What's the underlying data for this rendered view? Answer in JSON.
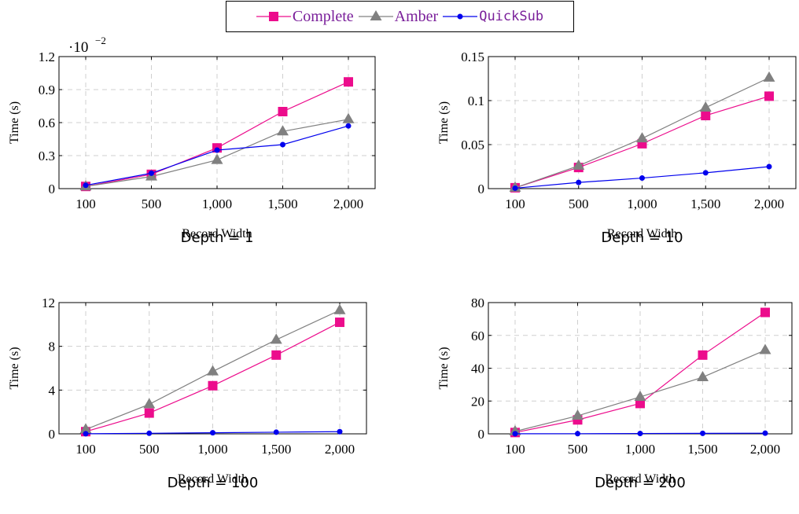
{
  "legend": {
    "entries": [
      {
        "name": "Complete",
        "color": "#ec0c8c",
        "marker": "square"
      },
      {
        "name": "Amber",
        "color": "#808080",
        "marker": "triangle"
      },
      {
        "name": "QuickSub",
        "color": "#0000ee",
        "marker": "circle"
      }
    ]
  },
  "chart_data": [
    {
      "type": "line",
      "caption": "Depth = 1",
      "xlabel": "Record Width",
      "ylabel": "Time (s)",
      "scale_note": "·10",
      "scale_exp": "−2",
      "categories": [
        "100",
        "500",
        "1,000",
        "1,500",
        "2,000"
      ],
      "yticks": [
        "0",
        "0.3",
        "0.6",
        "0.9",
        "1.2"
      ],
      "ylim": [
        0,
        1.2
      ],
      "grid": true,
      "series": [
        {
          "name": "Complete",
          "values": [
            0.02,
            0.13,
            0.37,
            0.7,
            0.97
          ]
        },
        {
          "name": "Amber",
          "values": [
            0.02,
            0.11,
            0.26,
            0.52,
            0.63
          ]
        },
        {
          "name": "QuickSub",
          "values": [
            0.03,
            0.14,
            0.35,
            0.4,
            0.57
          ]
        }
      ]
    },
    {
      "type": "line",
      "caption": "Depth = 10",
      "xlabel": "Record Width",
      "ylabel": "Time (s)",
      "categories": [
        "100",
        "500",
        "1,000",
        "1,500",
        "2,000"
      ],
      "yticks": [
        "0",
        "0.05",
        "0.1",
        "0.15"
      ],
      "ylim": [
        0,
        0.15
      ],
      "grid": true,
      "series": [
        {
          "name": "Complete",
          "values": [
            0.001,
            0.024,
            0.051,
            0.083,
            0.105
          ]
        },
        {
          "name": "Amber",
          "values": [
            0.001,
            0.026,
            0.057,
            0.092,
            0.126
          ]
        },
        {
          "name": "QuickSub",
          "values": [
            0.0005,
            0.007,
            0.012,
            0.018,
            0.025
          ]
        }
      ]
    },
    {
      "type": "line",
      "caption": "Depth = 100",
      "xlabel": "Record Width",
      "ylabel": "Time (s)",
      "categories": [
        "100",
        "500",
        "1,000",
        "1,500",
        "2,000"
      ],
      "yticks": [
        "0",
        "4",
        "8",
        "12"
      ],
      "ylim": [
        0,
        12
      ],
      "grid": true,
      "series": [
        {
          "name": "Complete",
          "values": [
            0.2,
            1.9,
            4.4,
            7.2,
            10.2
          ]
        },
        {
          "name": "Amber",
          "values": [
            0.4,
            2.7,
            5.7,
            8.6,
            11.3
          ]
        },
        {
          "name": "QuickSub",
          "values": [
            0.01,
            0.05,
            0.1,
            0.15,
            0.2
          ]
        }
      ]
    },
    {
      "type": "line",
      "caption": "Depth = 200",
      "xlabel": "Record Width",
      "ylabel": "Time (s)",
      "categories": [
        "100",
        "500",
        "1,000",
        "1,500",
        "2,000"
      ],
      "yticks": [
        "0",
        "20",
        "40",
        "60",
        "80"
      ],
      "ylim": [
        0,
        80
      ],
      "grid": true,
      "series": [
        {
          "name": "Complete",
          "values": [
            0.8,
            8.5,
            18.5,
            48,
            74
          ]
        },
        {
          "name": "Amber",
          "values": [
            1.5,
            11,
            22.5,
            34.5,
            51
          ]
        },
        {
          "name": "QuickSub",
          "values": [
            0.05,
            0.1,
            0.2,
            0.3,
            0.4
          ]
        }
      ]
    }
  ]
}
